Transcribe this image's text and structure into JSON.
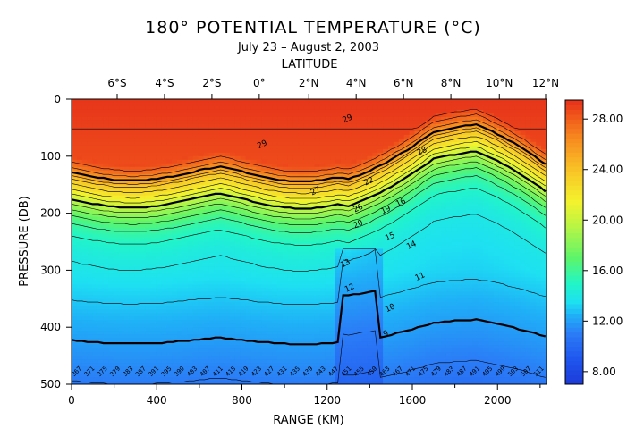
{
  "chart_data": {
    "type": "heatmap",
    "title": "180° POTENTIAL TEMPERATURE (°C)",
    "subtitle": "July 23 – August 2, 2003",
    "top_axis_label": "LATITUDE",
    "xlabel": "RANGE (KM)",
    "ylabel": "PRESSURE (DB)",
    "xlim": [
      0,
      2230
    ],
    "ylim": [
      500,
      0
    ],
    "x_ticks": [
      0,
      400,
      800,
      1200,
      1600,
      2000
    ],
    "x_tick_labels": [
      "0",
      "400",
      "800",
      "1200",
      "1600",
      "2000"
    ],
    "y_ticks": [
      0,
      100,
      200,
      300,
      400,
      500
    ],
    "y_tick_labels": [
      "0",
      "100",
      "200",
      "300",
      "400",
      "500"
    ],
    "lat_ticks": [
      {
        "label": "6°S",
        "range_km": 440
      },
      {
        "label": "4°S",
        "range_km": 880
      },
      {
        "label": "2°S",
        "range_km": 1320
      },
      {
        "label": "0°",
        "range_km": 1760
      },
      {
        "label": "2°N",
        "range_km": 2220
      },
      {
        "label": "4°N",
        "range_km": 2660
      },
      {
        "label": "6°N",
        "range_km": 3100
      },
      {
        "label": "8°N",
        "range_km": 3540
      },
      {
        "label": "10°N",
        "range_km": 3990
      },
      {
        "label": "12°N",
        "range_km": 4420
      }
    ],
    "colorbar": {
      "min": 7,
      "max": 29.5,
      "ticks": [
        8,
        12,
        16,
        20,
        24,
        28
      ],
      "tick_labels": [
        "8.00",
        "12.00",
        "16.00",
        "20.00",
        "24.00",
        "28.00"
      ]
    },
    "colorscale": [
      {
        "value": 7.0,
        "color": "#1d3bd8"
      },
      {
        "value": 9.0,
        "color": "#1f55ee"
      },
      {
        "value": 11.0,
        "color": "#2b7cf7"
      },
      {
        "value": 12.5,
        "color": "#1fb1f7"
      },
      {
        "value": 13.5,
        "color": "#1ee0f2"
      },
      {
        "value": 15.0,
        "color": "#22f5c7"
      },
      {
        "value": 17.0,
        "color": "#5cf56a"
      },
      {
        "value": 19.5,
        "color": "#b9f545"
      },
      {
        "value": 21.5,
        "color": "#f4f32d"
      },
      {
        "value": 24.0,
        "color": "#f8c326"
      },
      {
        "value": 26.5,
        "color": "#f78a1f"
      },
      {
        "value": 28.5,
        "color": "#ef4f1b"
      },
      {
        "value": 29.5,
        "color": "#e5301b"
      }
    ],
    "contour_labels": [
      {
        "text": "29",
        "x": 900,
        "p": 83
      },
      {
        "text": "29",
        "x": 1300,
        "p": 38
      },
      {
        "text": "28",
        "x": 1650,
        "p": 95
      },
      {
        "text": "27",
        "x": 1150,
        "p": 165
      },
      {
        "text": "26",
        "x": 1350,
        "p": 195
      },
      {
        "text": "22",
        "x": 1400,
        "p": 148
      },
      {
        "text": "20",
        "x": 1350,
        "p": 223
      },
      {
        "text": "19",
        "x": 1480,
        "p": 198
      },
      {
        "text": "16",
        "x": 1550,
        "p": 185
      },
      {
        "text": "15",
        "x": 1500,
        "p": 245
      },
      {
        "text": "14",
        "x": 1600,
        "p": 260
      },
      {
        "text": "13",
        "x": 1290,
        "p": 292
      },
      {
        "text": "12",
        "x": 1310,
        "p": 335
      },
      {
        "text": "11",
        "x": 1640,
        "p": 315
      },
      {
        "text": "10",
        "x": 1500,
        "p": 370
      },
      {
        "text": "9",
        "x": 1480,
        "p": 415
      }
    ],
    "station_labels": [
      "367",
      "371",
      "375",
      "379",
      "383",
      "387",
      "391",
      "395",
      "399",
      "403",
      "407",
      "411",
      "415",
      "419",
      "423",
      "427",
      "431",
      "435",
      "439",
      "443",
      "447",
      "451",
      "455",
      "459",
      "463",
      "467",
      "471",
      "475",
      "479",
      "483",
      "487",
      "491",
      "495",
      "499",
      "503",
      "507",
      "511"
    ],
    "bold_isotherms": [
      12,
      20,
      26
    ]
  }
}
